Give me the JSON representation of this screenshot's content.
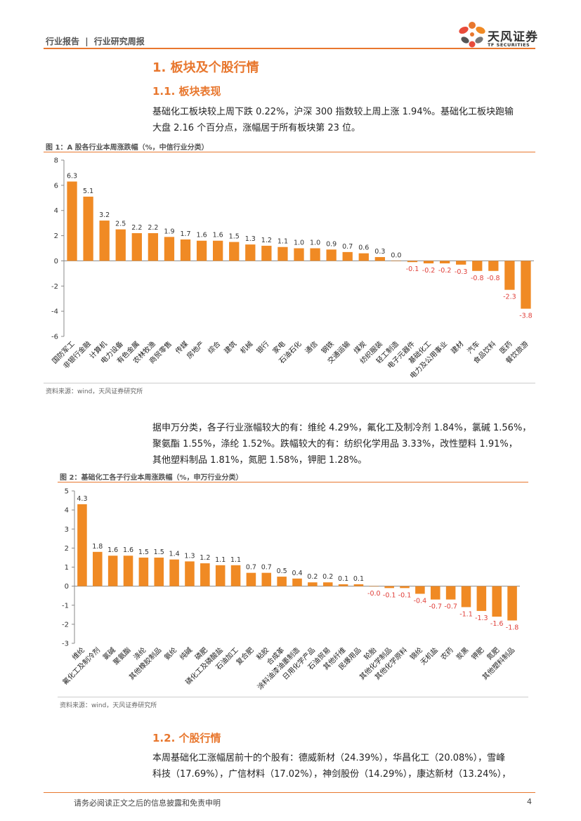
{
  "header": {
    "report_type": "行业报告",
    "separator": "|",
    "report_subtype": "行业研究周报",
    "logo_cn": "天风证券",
    "logo_en": "TF SECURITIES"
  },
  "section1": {
    "title": "1. 板块及个股行情",
    "sub1_title": "1.1. 板块表现",
    "para1_line1": "基础化工板块较上周下跌 0.22%，沪深 300 指数较上周上涨 1.94%。基础化工板块跑输",
    "para1_line2": "大盘 2.16 个百分点，涨幅居于所有板块第 23 位。",
    "para2_line1": "据申万分类，各子行业涨幅较大的有：维纶 4.29%，氟化工及制冷剂 1.84%，氯碱 1.56%，",
    "para2_line2": "聚氨酯 1.55%，涤纶 1.52%。跌幅较大的有：纺织化学用品 3.33%，改性塑料 1.91%，",
    "para2_line3": "其他塑料制品 1.81%，氮肥 1.58%，钾肥 1.28%。",
    "sub2_title": "1.2. 个股行情",
    "para3_line1": "本周基础化工涨幅居前十的个股有：德威新材（24.39%），华昌化工（20.08%），雪峰",
    "para3_line2": "科技（17.69%），广信材料（17.02%），神剑股份（14.29%），康达新材（13.24%），"
  },
  "figure1": {
    "title": "图 1：A 股各行业本周涨跌幅（%，中信行业分类）",
    "source": "资料来源：wind，天风证券研究所"
  },
  "figure2": {
    "title": "图 2：基础化工各子行业本周涨跌幅（%，申万行业分类）",
    "source": "资料来源：wind，天风证券研究所"
  },
  "footer": {
    "disclaimer": "请务必阅读正文之后的信息披露和免责申明",
    "page": "4"
  },
  "colors": {
    "accent": "#e8772e",
    "bar": "#f08a24",
    "negative_label": "#e0403a"
  },
  "chart_data": [
    {
      "type": "bar",
      "title": "图 1：A 股各行业本周涨跌幅（%，中信行业分类）",
      "ylim": [
        -6,
        8
      ],
      "yticks": [
        "8",
        "6",
        "4",
        "2",
        "0",
        "-2",
        "-4",
        "-6"
      ],
      "categories": [
        "国防军工",
        "非银行金融",
        "计算机",
        "电力设备",
        "有色金属",
        "农林牧渔",
        "商贸零售",
        "传媒",
        "房地产",
        "综合",
        "建筑",
        "机械",
        "银行",
        "家电",
        "石油石化",
        "通信",
        "钢铁",
        "交通运输",
        "煤炭",
        "纺织服装",
        "轻工制造",
        "电子元器件",
        "基础化工",
        "电力及公用事业",
        "建材",
        "汽车",
        "食品饮料",
        "医药",
        "餐饮旅游"
      ],
      "values": [
        6.3,
        5.1,
        3.2,
        2.5,
        2.2,
        2.2,
        1.9,
        1.7,
        1.6,
        1.6,
        1.5,
        1.3,
        1.2,
        1.1,
        1.0,
        1.0,
        0.9,
        0.7,
        0.6,
        0.3,
        0.0,
        -0.1,
        -0.2,
        -0.2,
        -0.3,
        -0.8,
        -0.8,
        -2.3,
        -3.8
      ],
      "labels": [
        "6.3",
        "5.1",
        "3.2",
        "2.5",
        "2.2",
        "2.2",
        "1.9",
        "1.7",
        "1.6",
        "1.6",
        "1.5",
        "1.3",
        "1.2",
        "1.1",
        "1.0",
        "1.0",
        "0.9",
        "0.7",
        "0.6",
        "0.3",
        "0.0",
        "-0.1",
        "-0.2",
        "-0.2",
        "-0.3",
        "-0.8",
        "-0.8",
        "-2.3",
        "-3.8"
      ]
    },
    {
      "type": "bar",
      "title": "图 2：基础化工各子行业本周涨跌幅（%，申万行业分类）",
      "ylim": [
        -3,
        5
      ],
      "yticks": [
        "5",
        "4",
        "3",
        "2",
        "1",
        "0",
        "-1",
        "-2",
        "-3"
      ],
      "categories": [
        "维纶",
        "氟化工及制冷剂",
        "氯碱",
        "聚氨酯",
        "涤纶",
        "其他橡胶制品",
        "氨纶",
        "纯碱",
        "磷肥",
        "磷化工及磷酸盐",
        "石油加工",
        "复合肥",
        "粘胶",
        "合成革",
        "涂料油漆油墨制造",
        "日用化学产品",
        "石油贸易",
        "其他纤维",
        "民爆用品",
        "轮胎",
        "其他化学制品",
        "其他化学原料",
        "锦纶",
        "无机盐",
        "农药",
        "炭黑",
        "钾肥",
        "氮肥",
        "其他塑料制品"
      ],
      "values": [
        4.3,
        1.8,
        1.6,
        1.6,
        1.5,
        1.5,
        1.4,
        1.3,
        1.2,
        1.1,
        1.1,
        0.7,
        0.7,
        0.5,
        0.4,
        0.2,
        0.2,
        0.1,
        0.1,
        -0.02,
        -0.1,
        -0.1,
        -0.4,
        -0.7,
        -0.7,
        -1.1,
        -1.3,
        -1.6,
        -1.8
      ],
      "labels": [
        "4.3",
        "1.8",
        "1.6",
        "1.6",
        "1.5",
        "1.5",
        "1.4",
        "1.3",
        "1.2",
        "1.1",
        "1.1",
        "0.7",
        "0.7",
        "0.5",
        "0.4",
        "0.2",
        "0.2",
        "0.1",
        "0.1",
        "-0.0",
        "-0.1",
        "-0.1",
        "-0.4",
        "-0.7",
        "-0.7",
        "-1.1",
        "-1.3",
        "-1.6",
        "-1.8"
      ]
    }
  ]
}
